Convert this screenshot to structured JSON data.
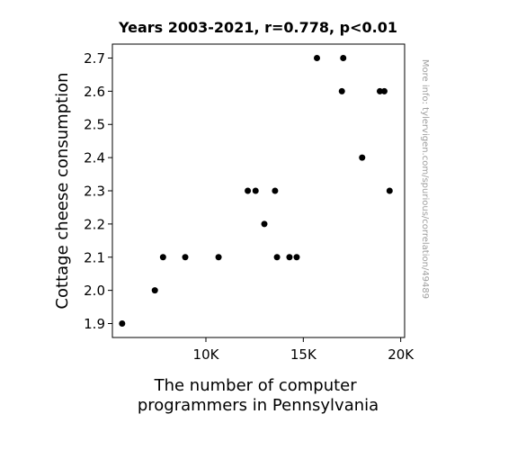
{
  "chart_data": {
    "type": "scatter",
    "title": "Years 2003-2021, r=0.778, p<0.01",
    "xlabel": [
      "The number of computer",
      "programmers in Pennsylvania"
    ],
    "ylabel": "Cottage cheese consumption",
    "xlim": [
      5200,
      20200
    ],
    "ylim": [
      1.858,
      2.742
    ],
    "x_ticks": [
      {
        "value": 10000,
        "label": "10K"
      },
      {
        "value": 15000,
        "label": "15K"
      },
      {
        "value": 20000,
        "label": "20K"
      }
    ],
    "y_ticks": [
      {
        "value": 1.9,
        "label": "1.9"
      },
      {
        "value": 2.0,
        "label": "2.0"
      },
      {
        "value": 2.1,
        "label": "2.1"
      },
      {
        "value": 2.2,
        "label": "2.2"
      },
      {
        "value": 2.3,
        "label": "2.3"
      },
      {
        "value": 2.4,
        "label": "2.4"
      },
      {
        "value": 2.5,
        "label": "2.5"
      },
      {
        "value": 2.6,
        "label": "2.6"
      },
      {
        "value": 2.7,
        "label": "2.7"
      }
    ],
    "points": [
      {
        "x": 5700,
        "y": 1.9
      },
      {
        "x": 7380,
        "y": 2.0
      },
      {
        "x": 7800,
        "y": 2.1
      },
      {
        "x": 8940,
        "y": 2.1
      },
      {
        "x": 10650,
        "y": 2.1
      },
      {
        "x": 12150,
        "y": 2.3
      },
      {
        "x": 12550,
        "y": 2.3
      },
      {
        "x": 13000,
        "y": 2.2
      },
      {
        "x": 13550,
        "y": 2.3
      },
      {
        "x": 13650,
        "y": 2.1
      },
      {
        "x": 14290,
        "y": 2.1
      },
      {
        "x": 14660,
        "y": 2.1
      },
      {
        "x": 15700,
        "y": 2.7
      },
      {
        "x": 16980,
        "y": 2.6
      },
      {
        "x": 17050,
        "y": 2.7
      },
      {
        "x": 18020,
        "y": 2.4
      },
      {
        "x": 18930,
        "y": 2.6
      },
      {
        "x": 19160,
        "y": 2.6
      },
      {
        "x": 19430,
        "y": 2.3
      }
    ],
    "marker_color": "#000000",
    "grid": false,
    "legend": "none"
  },
  "watermark": "More info: tylervigen.com/spurious/correlation/49489"
}
